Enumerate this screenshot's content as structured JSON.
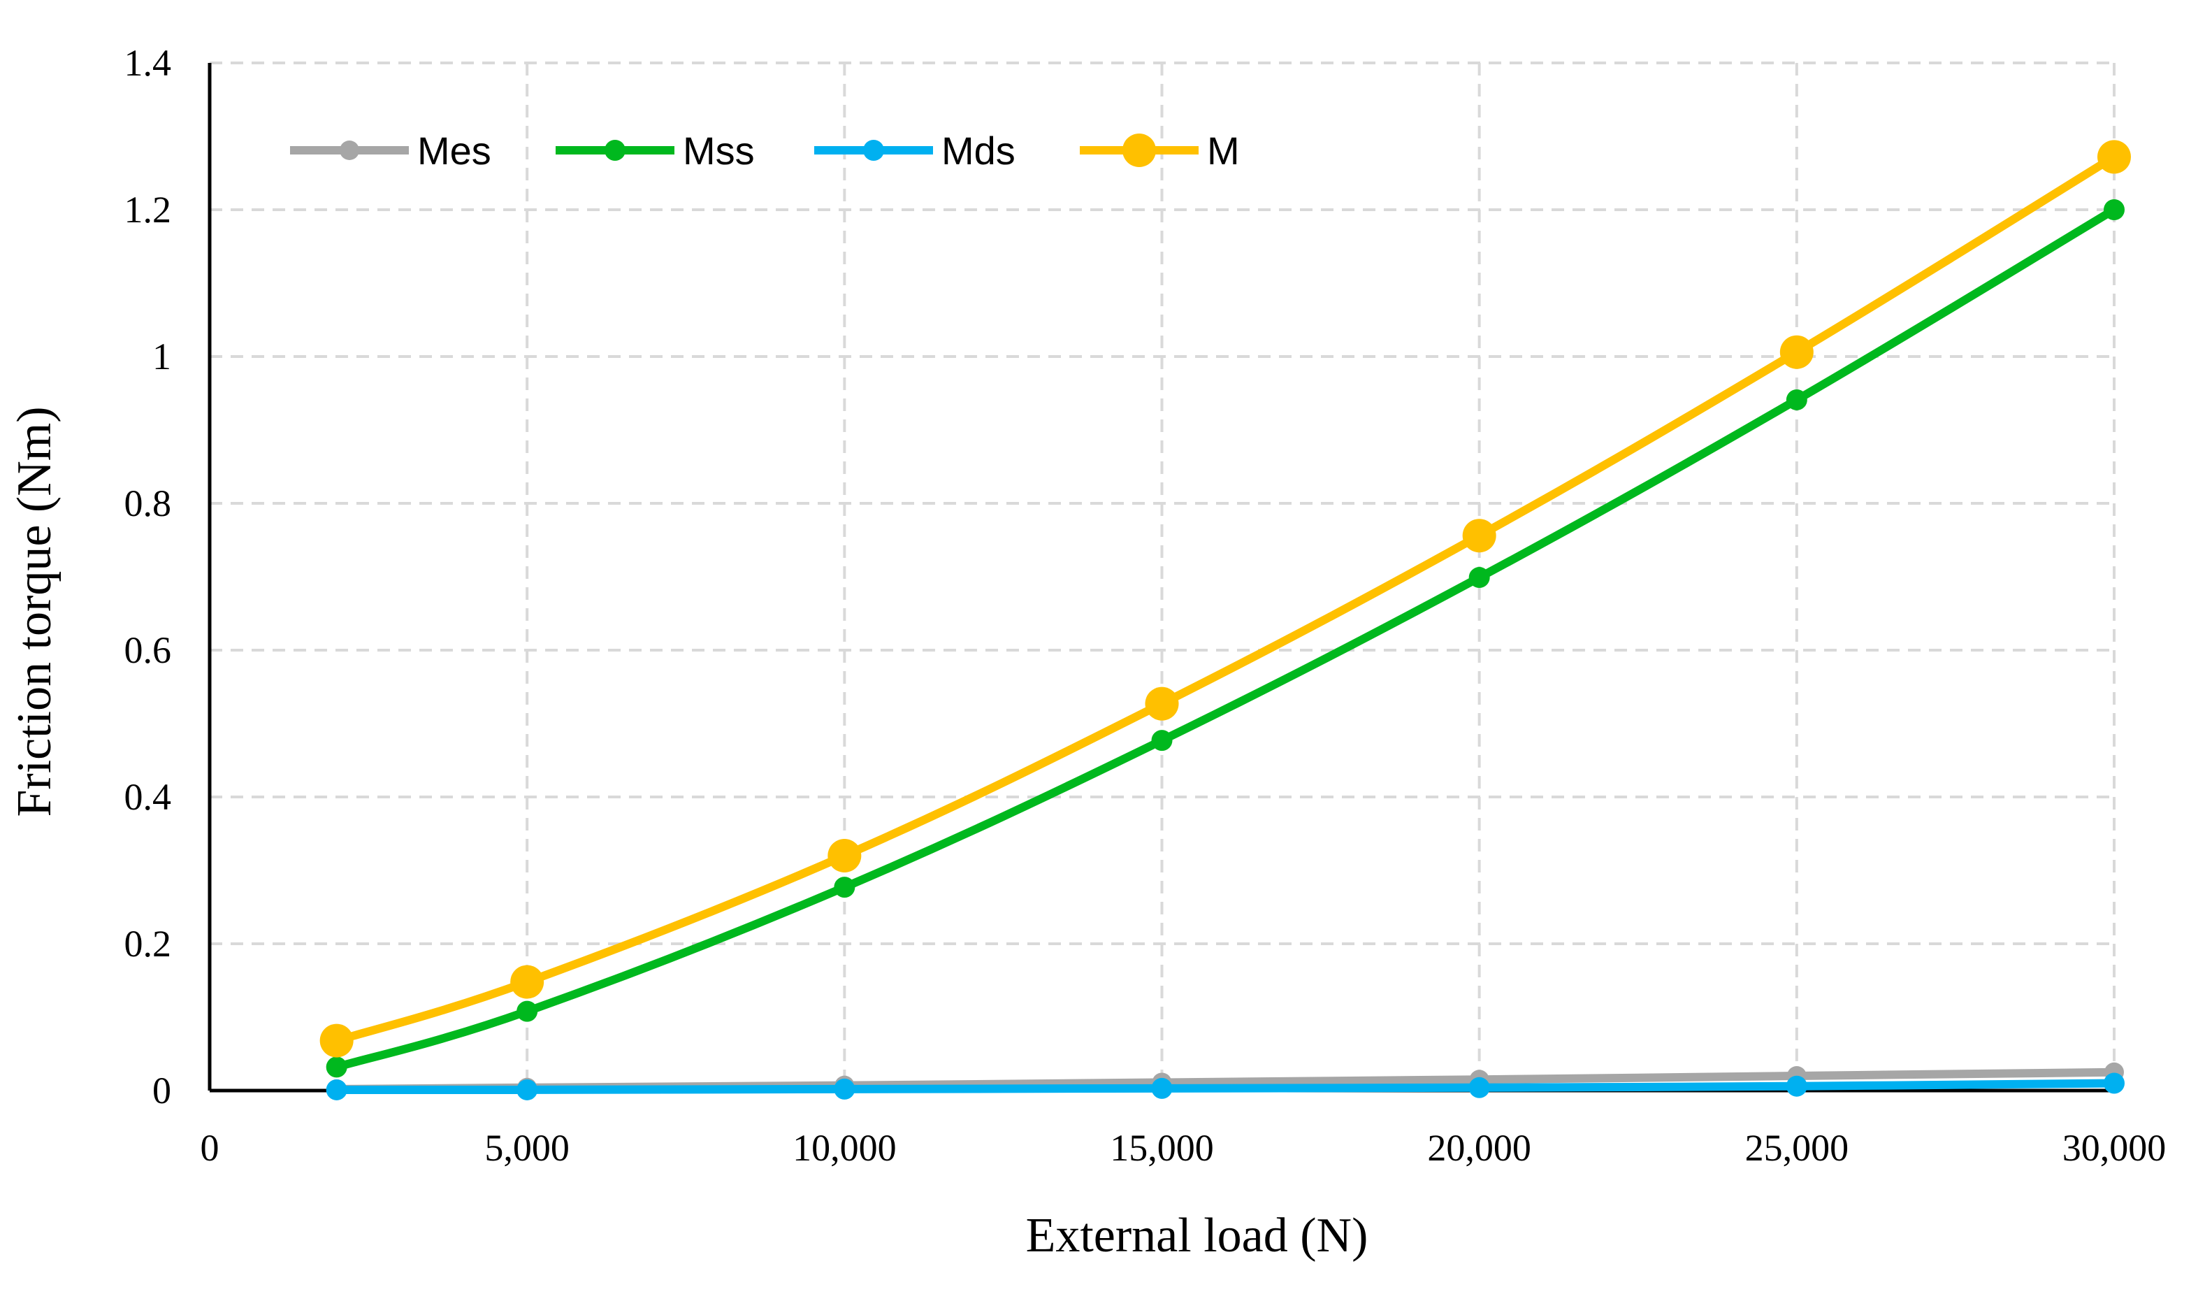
{
  "chart_data": {
    "type": "line",
    "title": "",
    "xlabel": "External load (N)",
    "ylabel": "Friction torque (Nm)",
    "x": [
      2000,
      5000,
      10000,
      15000,
      20000,
      25000,
      30000
    ],
    "xlim": [
      0,
      30000
    ],
    "ylim": [
      0,
      1.4
    ],
    "x_ticks": [
      0,
      5000,
      10000,
      15000,
      20000,
      25000,
      30000
    ],
    "x_tick_labels": [
      "0",
      "5,000",
      "10,000",
      "15,000",
      "20,000",
      "25,000",
      "30,000"
    ],
    "y_ticks": [
      0,
      0.2,
      0.4,
      0.6,
      0.8,
      1,
      1.2,
      1.4
    ],
    "y_tick_labels": [
      "0",
      "0.2",
      "0.4",
      "0.6",
      "0.8",
      "1",
      "1.2",
      "1.4"
    ],
    "grid": true,
    "legend_position": "top-left",
    "series": [
      {
        "name": "Mes",
        "color": "#a6a6a6",
        "values": [
          0.002,
          0.004,
          0.007,
          0.011,
          0.015,
          0.02,
          0.025
        ]
      },
      {
        "name": "Mss",
        "color": "#00b81e",
        "values": [
          0.032,
          0.108,
          0.277,
          0.477,
          0.699,
          0.941,
          1.2
        ]
      },
      {
        "name": "Mds",
        "color": "#00b0f0",
        "values": [
          0.001,
          0.001,
          0.002,
          0.003,
          0.004,
          0.006,
          0.01
        ]
      },
      {
        "name": "M",
        "color": "#ffc000",
        "values": [
          0.068,
          0.148,
          0.32,
          0.527,
          0.756,
          1.006,
          1.272
        ]
      }
    ]
  }
}
